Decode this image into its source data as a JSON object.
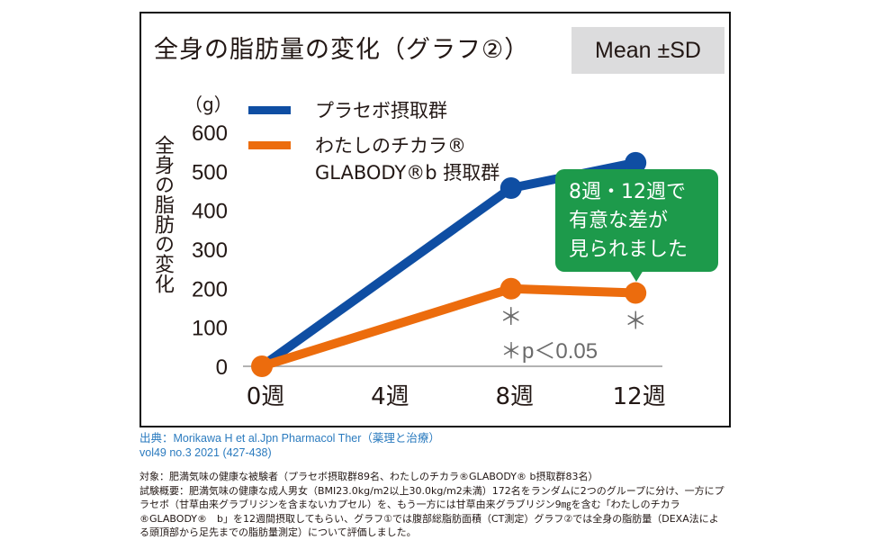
{
  "title": "全身の脂肪量の変化（グラフ②）",
  "stat_label": "Mean ±SD",
  "unit_label": "（g）",
  "y_axis_label": "全身の脂肪の変化",
  "legend": [
    {
      "label": "プラセボ摂取群",
      "color": "#0f4ea3"
    },
    {
      "label": "わたしのチカラ®\nGLABODY®b 摂取群",
      "color": "#ec6c0d"
    }
  ],
  "callout": {
    "lines": [
      "8週・12週で",
      "有意な差が",
      "見られました"
    ],
    "color": "#1d9a4b"
  },
  "significance_note": "＊p＜0.05",
  "chart_data": {
    "type": "line",
    "title": "全身の脂肪量の変化（グラフ②）",
    "xlabel": "",
    "ylabel": "全身の脂肪の変化（g）",
    "x": [
      0,
      4,
      8,
      12
    ],
    "x_tick_labels": [
      "0週",
      "4週",
      "8週",
      "12週"
    ],
    "y_ticks": [
      0,
      100,
      200,
      300,
      400,
      500,
      600
    ],
    "ylim": [
      0,
      600
    ],
    "xlim": [
      0,
      12
    ],
    "grid": false,
    "legend_position": "top-left",
    "series": [
      {
        "name": "プラセボ摂取群",
        "color": "#0f4ea3",
        "x": [
          0,
          8,
          12
        ],
        "values": [
          0,
          457,
          522
        ],
        "significant": [
          false,
          false,
          false
        ]
      },
      {
        "name": "わたしのチカラ® GLABODY®b 摂取群",
        "color": "#ec6c0d",
        "x": [
          0,
          8,
          12
        ],
        "values": [
          0,
          199,
          188
        ],
        "significant": [
          false,
          true,
          true
        ]
      }
    ],
    "annotations": [
      "8週・12週で有意な差が見られました",
      "＊p＜0.05",
      "Mean ±SD"
    ]
  },
  "source": {
    "line1": "出典：Morikawa H et al.Jpn Pharmacol Ther（薬理と治療）",
    "line2": "vol49 no.3 2021 (427-438)"
  },
  "notes": [
    "対象：肥満気味の健康な被験者（プラセボ摂取群89名、わたしのチカラ®GLABODY® b摂取群83名）",
    "試験概要：肥満気味の健康な成人男女（BMI23.0kg/m2以上30.0kg/m2未満）172名をランダムに2つのグループに分け、一方にプラセボ（甘草由来グラブリジンを含まないカプセル）を、もう一方には甘草由来グラブリジン9㎎を含む「わたしのチカラ®GLABODY®　b」を12週間摂取してもらい、グラフ①では腹部総脂肪面積（CT測定）グラフ②では全身の脂肪量（DEXA法による頭頂部から足先までの脂肪量測定）について評価しました。"
  ]
}
